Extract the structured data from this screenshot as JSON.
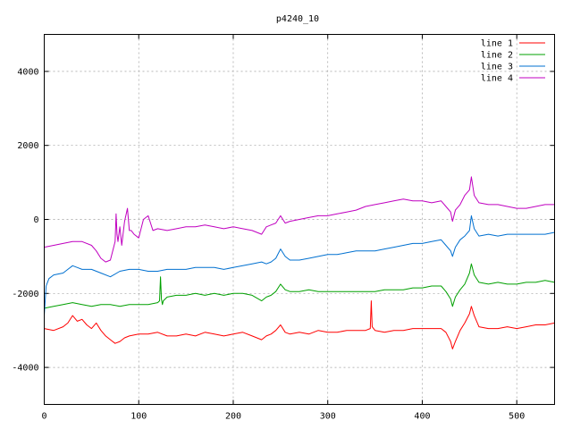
{
  "chart_data": {
    "type": "line",
    "title": "p4240_10",
    "xlabel": "",
    "ylabel": "",
    "xlim": [
      0,
      540
    ],
    "ylim": [
      -5000,
      5000
    ],
    "x_ticks": [
      0,
      100,
      200,
      300,
      400,
      500
    ],
    "y_ticks": [
      -4000,
      -2000,
      0,
      2000,
      4000
    ],
    "grid": true,
    "legend_position": "top-right",
    "series": [
      {
        "name": "line 1",
        "color": "#ff0000",
        "x": [
          0,
          10,
          20,
          25,
          30,
          35,
          40,
          45,
          50,
          55,
          60,
          65,
          70,
          75,
          80,
          85,
          90,
          100,
          110,
          120,
          130,
          140,
          150,
          160,
          170,
          180,
          190,
          200,
          210,
          220,
          230,
          235,
          240,
          245,
          250,
          255,
          260,
          270,
          280,
          290,
          300,
          310,
          320,
          330,
          340,
          345,
          346,
          347,
          350,
          360,
          370,
          380,
          390,
          400,
          410,
          420,
          425,
          430,
          432,
          435,
          440,
          445,
          450,
          452,
          455,
          460,
          470,
          480,
          490,
          500,
          510,
          520,
          530,
          540
        ],
        "values": [
          -2950,
          -3000,
          -2900,
          -2800,
          -2600,
          -2750,
          -2700,
          -2850,
          -2950,
          -2800,
          -3000,
          -3150,
          -3250,
          -3350,
          -3300,
          -3200,
          -3150,
          -3100,
          -3100,
          -3050,
          -3150,
          -3150,
          -3100,
          -3150,
          -3050,
          -3100,
          -3150,
          -3100,
          -3050,
          -3150,
          -3250,
          -3150,
          -3100,
          -3000,
          -2850,
          -3050,
          -3100,
          -3050,
          -3100,
          -3000,
          -3050,
          -3050,
          -3000,
          -3000,
          -3000,
          -2950,
          -2200,
          -2900,
          -3000,
          -3050,
          -3000,
          -3000,
          -2950,
          -2950,
          -2950,
          -2950,
          -3050,
          -3300,
          -3500,
          -3300,
          -3000,
          -2800,
          -2550,
          -2350,
          -2600,
          -2900,
          -2950,
          -2950,
          -2900,
          -2950,
          -2900,
          -2850,
          -2850,
          -2800
        ]
      },
      {
        "name": "line 2",
        "color": "#00a000",
        "x": [
          0,
          10,
          20,
          30,
          40,
          50,
          60,
          70,
          80,
          90,
          100,
          110,
          120,
          122,
          123,
          124,
          125,
          126,
          130,
          140,
          150,
          160,
          170,
          180,
          190,
          200,
          210,
          220,
          230,
          235,
          240,
          245,
          250,
          255,
          260,
          270,
          280,
          290,
          300,
          310,
          320,
          330,
          340,
          350,
          360,
          370,
          380,
          390,
          400,
          410,
          420,
          425,
          430,
          432,
          435,
          440,
          445,
          450,
          452,
          455,
          460,
          470,
          480,
          490,
          500,
          510,
          520,
          530,
          540
        ],
        "values": [
          -2400,
          -2350,
          -2300,
          -2250,
          -2300,
          -2350,
          -2300,
          -2300,
          -2350,
          -2300,
          -2300,
          -2300,
          -2250,
          -2200,
          -1550,
          -2150,
          -2300,
          -2200,
          -2100,
          -2050,
          -2050,
          -2000,
          -2050,
          -2000,
          -2050,
          -2000,
          -2000,
          -2050,
          -2200,
          -2100,
          -2050,
          -1950,
          -1750,
          -1900,
          -1950,
          -1950,
          -1900,
          -1950,
          -1950,
          -1950,
          -1950,
          -1950,
          -1950,
          -1950,
          -1900,
          -1900,
          -1900,
          -1850,
          -1850,
          -1800,
          -1800,
          -1950,
          -2150,
          -2350,
          -2100,
          -1900,
          -1750,
          -1450,
          -1200,
          -1500,
          -1700,
          -1750,
          -1700,
          -1750,
          -1750,
          -1700,
          -1700,
          -1650,
          -1700
        ]
      },
      {
        "name": "line 3",
        "color": "#0070d0",
        "x": [
          0,
          2,
          5,
          10,
          20,
          25,
          30,
          35,
          40,
          50,
          60,
          70,
          80,
          90,
          100,
          110,
          120,
          130,
          140,
          150,
          160,
          170,
          180,
          190,
          200,
          210,
          220,
          230,
          235,
          240,
          245,
          250,
          255,
          260,
          270,
          280,
          290,
          300,
          310,
          320,
          330,
          340,
          350,
          360,
          370,
          380,
          390,
          400,
          410,
          420,
          425,
          430,
          432,
          435,
          440,
          445,
          450,
          452,
          455,
          460,
          470,
          480,
          490,
          500,
          510,
          520,
          530,
          540
        ],
        "values": [
          -2600,
          -1800,
          -1600,
          -1500,
          -1450,
          -1350,
          -1250,
          -1300,
          -1350,
          -1350,
          -1450,
          -1550,
          -1400,
          -1350,
          -1350,
          -1400,
          -1400,
          -1350,
          -1350,
          -1350,
          -1300,
          -1300,
          -1300,
          -1350,
          -1300,
          -1250,
          -1200,
          -1150,
          -1200,
          -1150,
          -1050,
          -800,
          -1000,
          -1100,
          -1100,
          -1050,
          -1000,
          -950,
          -950,
          -900,
          -850,
          -850,
          -850,
          -800,
          -750,
          -700,
          -650,
          -650,
          -600,
          -550,
          -700,
          -850,
          -1000,
          -750,
          -550,
          -450,
          -300,
          100,
          -250,
          -450,
          -400,
          -450,
          -400,
          -400,
          -400,
          -400,
          -400,
          -350
        ]
      },
      {
        "name": "line 4",
        "color": "#c000c0",
        "x": [
          0,
          10,
          20,
          30,
          40,
          50,
          55,
          60,
          65,
          70,
          75,
          76,
          77,
          78,
          80,
          82,
          85,
          88,
          90,
          92,
          95,
          100,
          105,
          110,
          115,
          120,
          130,
          140,
          150,
          160,
          170,
          180,
          190,
          200,
          210,
          220,
          230,
          235,
          240,
          245,
          250,
          255,
          260,
          270,
          280,
          290,
          300,
          310,
          320,
          330,
          340,
          350,
          360,
          370,
          380,
          390,
          400,
          410,
          420,
          425,
          430,
          432,
          435,
          440,
          445,
          450,
          452,
          455,
          460,
          470,
          480,
          490,
          500,
          510,
          520,
          530,
          540
        ],
        "values": [
          -750,
          -700,
          -650,
          -600,
          -600,
          -700,
          -850,
          -1050,
          -1150,
          -1100,
          -600,
          150,
          -400,
          -600,
          -200,
          -700,
          -50,
          300,
          -300,
          -300,
          -400,
          -500,
          0,
          100,
          -300,
          -250,
          -300,
          -250,
          -200,
          -200,
          -150,
          -200,
          -250,
          -200,
          -250,
          -300,
          -400,
          -200,
          -150,
          -100,
          100,
          -100,
          -50,
          0,
          50,
          100,
          100,
          150,
          200,
          250,
          350,
          400,
          450,
          500,
          550,
          500,
          500,
          450,
          500,
          350,
          200,
          -50,
          250,
          400,
          650,
          800,
          1150,
          650,
          450,
          400,
          400,
          350,
          300,
          300,
          350,
          400,
          400
        ]
      }
    ]
  }
}
